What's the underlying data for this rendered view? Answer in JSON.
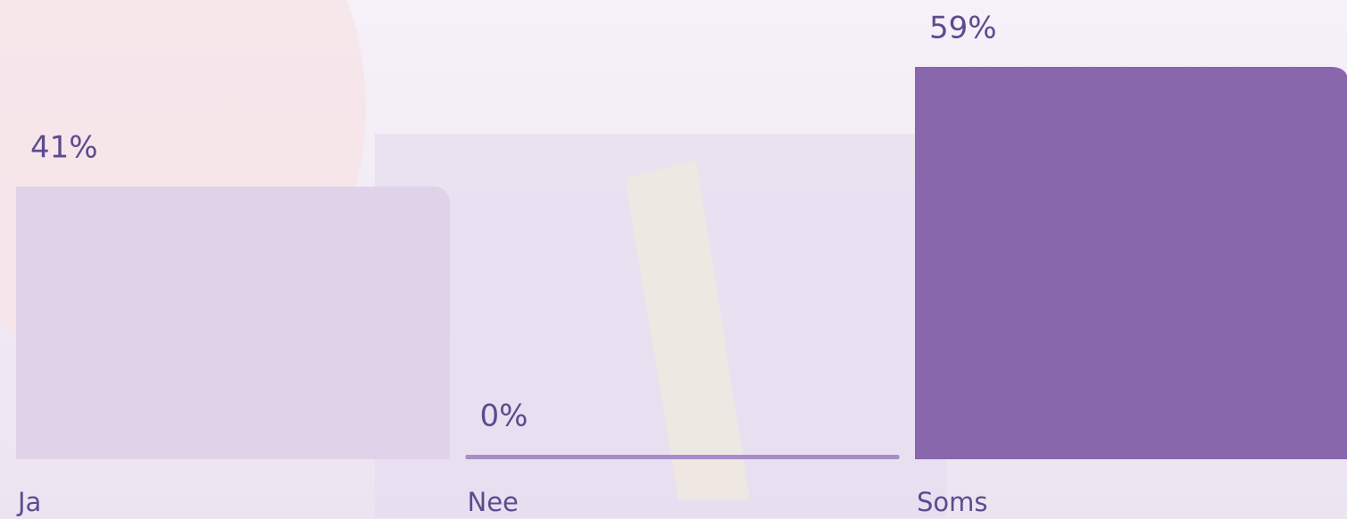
{
  "chart_data": {
    "type": "bar",
    "categories": [
      "Ja",
      "Nee",
      "Soms"
    ],
    "values": [
      41,
      0,
      59
    ],
    "value_labels": [
      "41%",
      "0%",
      "59%"
    ],
    "colors": [
      "#e0d2e8",
      "#a98dc8",
      "#8867ad"
    ]
  }
}
